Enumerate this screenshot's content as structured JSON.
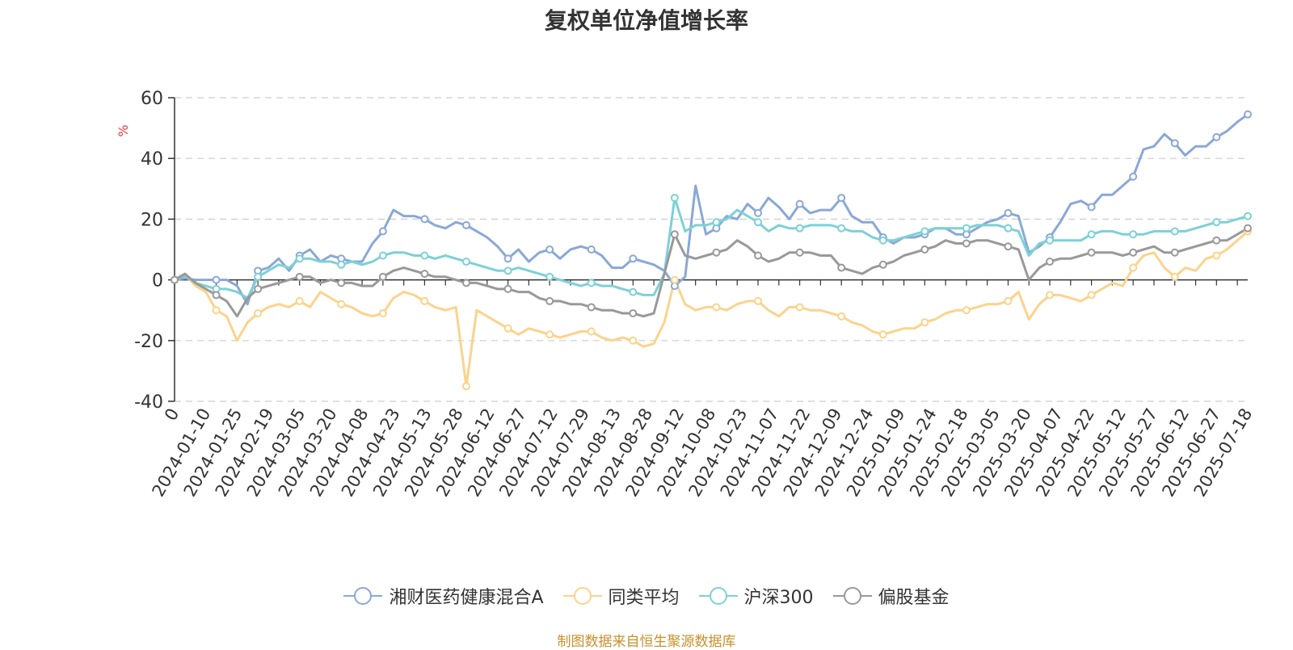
{
  "chart_data": {
    "type": "line",
    "title": "复权单位净值增长率",
    "ylabel": "%",
    "ylim": [
      -40,
      60
    ],
    "yticks": [
      -40,
      -20,
      0,
      20,
      40,
      60
    ],
    "grid": true,
    "legend_position": "bottom",
    "x_tick_labels": [
      "0",
      "2024-01-10",
      "2024-01-25",
      "2024-02-19",
      "2024-03-05",
      "2024-03-20",
      "2024-04-08",
      "2024-04-23",
      "2024-05-13",
      "2024-05-28",
      "2024-06-12",
      "2024-06-27",
      "2024-07-12",
      "2024-07-29",
      "2024-08-13",
      "2024-08-28",
      "2024-09-12",
      "2024-10-08",
      "2024-10-23",
      "2024-11-07",
      "2024-11-22",
      "2024-12-09",
      "2024-12-24",
      "2025-01-09",
      "2025-01-24",
      "2025-02-18",
      "2025-03-05",
      "2025-03-20",
      "2025-04-07",
      "2025-04-22",
      "2025-05-12",
      "2025-05-27",
      "2025-06-12",
      "2025-06-27",
      "2025-07-18"
    ],
    "series": [
      {
        "name": "湘财医药健康混合A",
        "color": "#8aa8d6",
        "values": [
          0,
          0.5,
          0,
          0,
          0,
          0,
          -2,
          -8,
          3,
          4,
          7,
          3,
          8,
          10,
          6,
          8,
          7,
          6,
          6,
          12,
          16,
          23,
          21,
          21,
          20,
          18,
          17,
          19,
          18,
          16,
          14,
          11,
          7,
          10,
          6,
          9,
          10,
          7,
          10,
          11,
          10,
          8,
          4,
          4,
          7,
          6,
          5,
          3,
          -2,
          1,
          31,
          15,
          17,
          21,
          20,
          25,
          22,
          27,
          24,
          20,
          25,
          22,
          23,
          23,
          27,
          21,
          19,
          19,
          14,
          12,
          14,
          14,
          15,
          17,
          17,
          15,
          15,
          17,
          19,
          20,
          22,
          21,
          9,
          11,
          14,
          19,
          25,
          26,
          24,
          28,
          28,
          31,
          34,
          43,
          44,
          48,
          45,
          41,
          44,
          44,
          47,
          49,
          52,
          54.5
        ]
      },
      {
        "name": "同类平均",
        "color": "#fbd38c",
        "values": [
          0,
          2,
          -2,
          -4,
          -10,
          -12,
          -20,
          -14,
          -11,
          -9,
          -8,
          -9,
          -7,
          -9,
          -4,
          -6,
          -8,
          -9,
          -11,
          -12,
          -11,
          -6,
          -4,
          -5,
          -7,
          -9,
          -10,
          -9,
          -35,
          -10,
          -12,
          -14,
          -16,
          -18,
          -16,
          -17,
          -18,
          -19,
          -18,
          -17,
          -17,
          -19,
          -20,
          -19,
          -20,
          -22,
          -21,
          -14,
          0,
          -8,
          -10,
          -9,
          -9,
          -10,
          -8,
          -7,
          -7,
          -10,
          -12,
          -9,
          -9,
          -10,
          -10,
          -11,
          -12,
          -14,
          -15,
          -17,
          -18,
          -17,
          -16,
          -16,
          -14,
          -13,
          -11,
          -10,
          -10,
          -9,
          -8,
          -8,
          -7,
          -4,
          -13,
          -8,
          -5,
          -5,
          -6,
          -7,
          -5,
          -3,
          -1,
          -2,
          4,
          8,
          9,
          4,
          1,
          4,
          3,
          7,
          8,
          10,
          13,
          16
        ]
      },
      {
        "name": "沪深300",
        "color": "#7dd1d6",
        "values": [
          0,
          1.5,
          -1,
          -2,
          -3,
          -3,
          -4,
          -6,
          1,
          3,
          5,
          4,
          7,
          7,
          6,
          6,
          5,
          6,
          5,
          6,
          8,
          9,
          9,
          8,
          8,
          7,
          8,
          7,
          6,
          5,
          4,
          3,
          3,
          4,
          3,
          2,
          1,
          0,
          -1,
          -2,
          -1,
          -2,
          -2,
          -3,
          -4,
          -5,
          -5,
          2,
          27,
          16,
          18,
          18,
          19,
          20,
          23,
          21,
          19,
          16,
          18,
          17,
          17,
          18,
          18,
          18,
          17,
          16,
          16,
          14,
          13,
          13,
          14,
          15,
          16,
          17,
          17,
          17,
          17,
          18,
          18,
          18,
          17,
          16,
          8,
          12,
          13,
          13,
          13,
          13,
          15,
          16,
          16,
          15,
          15,
          15,
          16,
          16,
          16,
          16,
          17,
          18,
          19,
          19,
          20,
          21
        ]
      },
      {
        "name": "偏股基金",
        "color": "#999999",
        "values": [
          0,
          2,
          -1,
          -3,
          -5,
          -7,
          -12,
          -6,
          -3,
          -2,
          -1,
          0,
          1,
          1,
          -1,
          0,
          -1,
          -1,
          -2,
          -2,
          1,
          3,
          4,
          3,
          2,
          1,
          1,
          0,
          -1,
          -1,
          -2,
          -3,
          -3,
          -4,
          -4,
          -6,
          -7,
          -7,
          -8,
          -8,
          -9,
          -10,
          -10,
          -11,
          -11,
          -12,
          -11,
          2,
          15,
          8,
          7,
          8,
          9,
          10,
          13,
          11,
          8,
          6,
          7,
          9,
          9,
          9,
          8,
          8,
          4,
          3,
          2,
          4,
          5,
          6,
          8,
          9,
          10,
          11,
          13,
          12,
          12,
          13,
          13,
          12,
          11,
          10,
          0,
          4,
          6,
          7,
          7,
          8,
          9,
          9,
          9,
          8,
          9,
          10,
          11,
          9,
          9,
          10,
          11,
          12,
          13,
          13,
          15,
          17
        ]
      }
    ]
  },
  "legend_items": [
    {
      "label": "湘财医药健康混合A",
      "color": "#8aa8d6"
    },
    {
      "label": "同类平均",
      "color": "#fbd38c"
    },
    {
      "label": "沪深300",
      "color": "#7dd1d6"
    },
    {
      "label": "偏股基金",
      "color": "#999999"
    }
  ],
  "source_note": "制图数据来自恒生聚源数据库"
}
